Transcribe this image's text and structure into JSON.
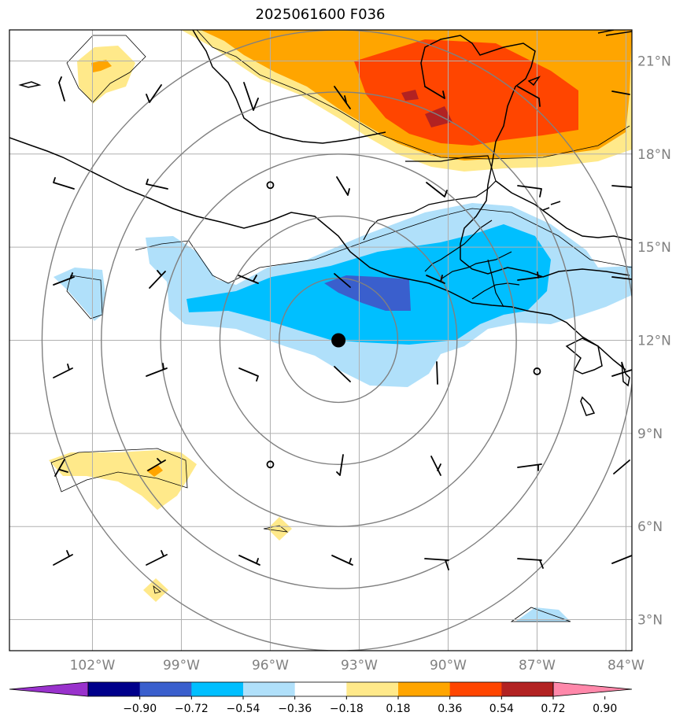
{
  "title": "2025061600 F036",
  "map": {
    "lon_range": [
      -104.8,
      -83.8
    ],
    "lat_range": [
      2.0,
      22.0
    ],
    "lon_ticks": [
      "102°W",
      "99°W",
      "96°W",
      "93°W",
      "90°W",
      "87°W",
      "84°W"
    ],
    "lon_tick_values": [
      -102,
      -99,
      -96,
      -93,
      -90,
      -87,
      -84
    ],
    "lat_ticks": [
      "3°N",
      "6°N",
      "9°N",
      "12°N",
      "15°N",
      "18°N",
      "21°N"
    ],
    "lat_tick_values": [
      3,
      6,
      9,
      12,
      15,
      18,
      21
    ],
    "gridlines": true,
    "center_marker": {
      "lon": -93.7,
      "lat": 12.0
    },
    "range_rings_deg": [
      2,
      4,
      6,
      8,
      10
    ],
    "grid_point_markers": [
      {
        "lon": -96.0,
        "lat": 17.0
      },
      {
        "lon": -96.0,
        "lat": 8.0
      },
      {
        "lon": -87.0,
        "lat": 11.0
      }
    ],
    "colors": {
      "ring": "#808080",
      "grid": "#b0b0b0",
      "coast": "#000000",
      "center": "#000000"
    }
  },
  "colorbar": {
    "ticks": [
      "−0.90",
      "−0.72",
      "−0.54",
      "−0.36",
      "−0.18",
      "0.18",
      "0.36",
      "0.54",
      "0.72",
      "0.90"
    ],
    "colors": [
      "#9932cc",
      "#00008b",
      "#3a5fcd",
      "#00bfff",
      "#b0e0fa",
      "#ffffff",
      "#ffe98a",
      "#ffa500",
      "#ff4500",
      "#b22222",
      "#ff88aa"
    ],
    "extend": "both"
  }
}
